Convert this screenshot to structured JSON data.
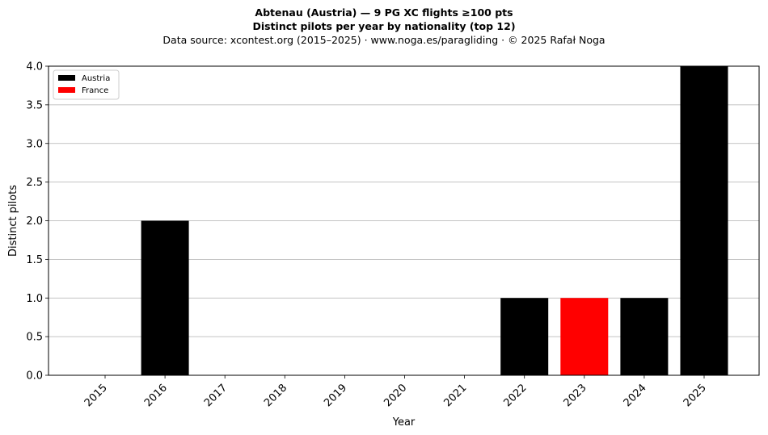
{
  "chart_data": {
    "type": "bar",
    "title": "Abtenau (Austria)  —  9 PG XC flights ≥100 pts",
    "subtitle": "Distinct pilots per year by nationality (top 12)",
    "source": "Data source: xcontest.org (2015–2025)  ·  www.noga.es/paragliding  ·  © 2025 Rafał Noga",
    "xlabel": "Year",
    "ylabel": "Distinct pilots",
    "categories": [
      "2015",
      "2016",
      "2017",
      "2018",
      "2019",
      "2020",
      "2021",
      "2022",
      "2023",
      "2024",
      "2025"
    ],
    "series": [
      {
        "name": "Austria",
        "color": "#000000",
        "values": [
          0,
          2,
          0,
          0,
          0,
          0,
          0,
          1,
          0,
          1,
          4
        ]
      },
      {
        "name": "France",
        "color": "#ff0000",
        "values": [
          0,
          0,
          0,
          0,
          0,
          0,
          0,
          0,
          1,
          0,
          0
        ]
      }
    ],
    "ylim": [
      0,
      4
    ],
    "yticks": [
      "0.0",
      "0.5",
      "1.0",
      "1.5",
      "2.0",
      "2.5",
      "3.0",
      "3.5",
      "4.0"
    ],
    "grid": "y",
    "legend": "top-left"
  }
}
